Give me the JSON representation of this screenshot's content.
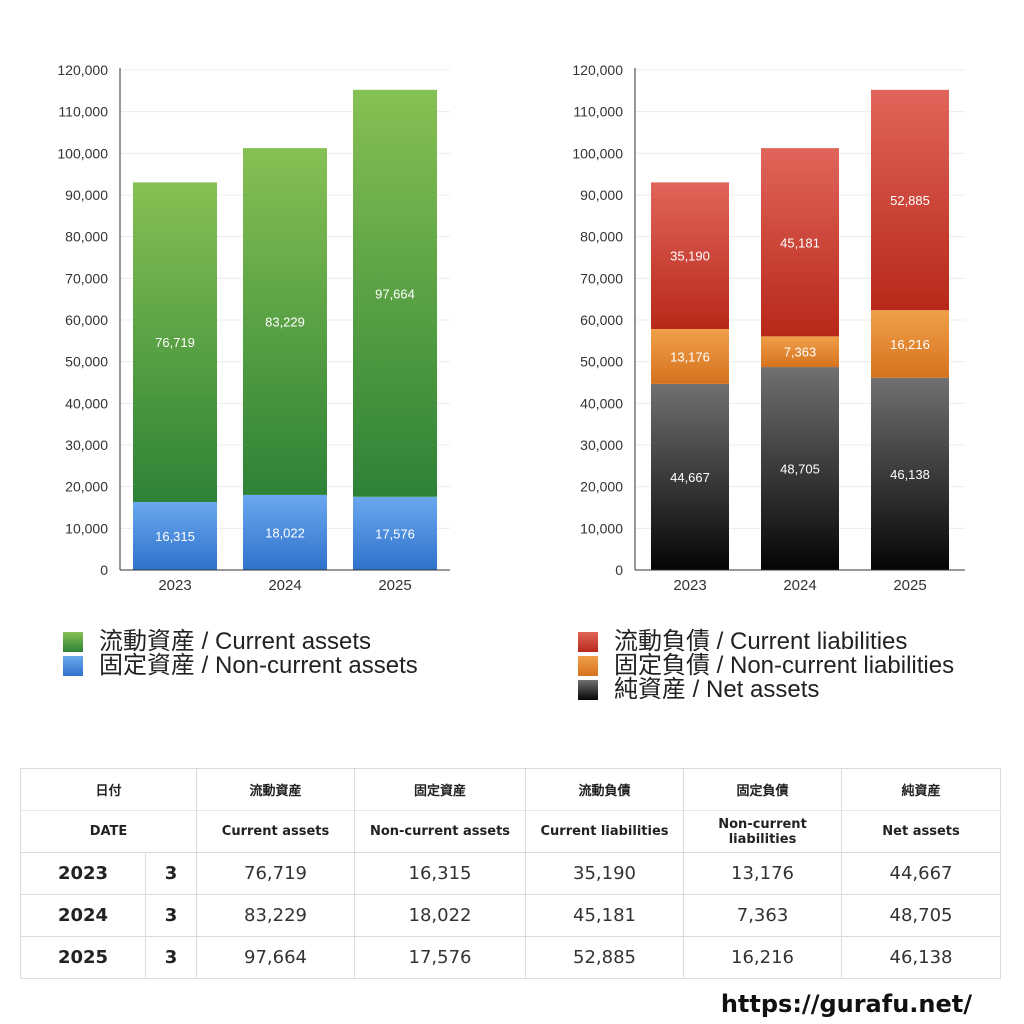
{
  "chart_data": [
    {
      "type": "bar",
      "stacked": true,
      "categories": [
        "2023",
        "2024",
        "2025"
      ],
      "ylim": [
        0,
        120000
      ],
      "yticks": [
        0,
        10000,
        20000,
        30000,
        40000,
        50000,
        60000,
        70000,
        80000,
        90000,
        100000,
        110000,
        120000
      ],
      "ytick_labels": [
        "0",
        "10,000",
        "20,000",
        "30,000",
        "40,000",
        "50,000",
        "60,000",
        "70,000",
        "80,000",
        "90,000",
        "100,000",
        "110,000",
        "120,000"
      ],
      "grid": true,
      "legend_position": "bottom",
      "series": [
        {
          "name": "固定資産 / Non-current assets",
          "values": [
            16315,
            18022,
            17576
          ],
          "labels": [
            "16,315",
            "18,022",
            "17,576"
          ],
          "color_top": "#6aa8ee",
          "color_bottom": "#2f72cc"
        },
        {
          "name": "流動資産 / Current assets",
          "values": [
            76719,
            83229,
            97664
          ],
          "labels": [
            "76,719",
            "83,229",
            "97,664"
          ],
          "color_top": "#86c153",
          "color_bottom": "#2e8236"
        }
      ],
      "legend_order": [
        1,
        0
      ]
    },
    {
      "type": "bar",
      "stacked": true,
      "categories": [
        "2023",
        "2024",
        "2025"
      ],
      "ylim": [
        0,
        120000
      ],
      "yticks": [
        0,
        10000,
        20000,
        30000,
        40000,
        50000,
        60000,
        70000,
        80000,
        90000,
        100000,
        110000,
        120000
      ],
      "ytick_labels": [
        "0",
        "10,000",
        "20,000",
        "30,000",
        "40,000",
        "50,000",
        "60,000",
        "70,000",
        "80,000",
        "90,000",
        "100,000",
        "110,000",
        "120,000"
      ],
      "grid": true,
      "legend_position": "bottom",
      "series": [
        {
          "name": "純資産 / Net assets",
          "values": [
            44667,
            48705,
            46138
          ],
          "labels": [
            "44,667",
            "48,705",
            "46,138"
          ],
          "color_top": "#707070",
          "color_bottom": "#050505"
        },
        {
          "name": "固定負債 / Non-current liabilities",
          "values": [
            13176,
            7363,
            16216
          ],
          "labels": [
            "13,176",
            "7,363",
            "16,216"
          ],
          "color_top": "#f0a04a",
          "color_bottom": "#d6721d"
        },
        {
          "name": "流動負債 / Current liabilities",
          "values": [
            35190,
            45181,
            52885
          ],
          "labels": [
            "35,190",
            "45,181",
            "52,885"
          ],
          "color_top": "#e0655a",
          "color_bottom": "#b8281a"
        }
      ],
      "legend_order": [
        2,
        1,
        0
      ]
    }
  ],
  "table": {
    "header_jp": [
      "日付",
      "流動資産",
      "固定資産",
      "流動負債",
      "固定負債",
      "純資産"
    ],
    "header_en": [
      "DATE",
      "Current assets",
      "Non-current assets",
      "Current liabilities",
      "Non-current liabilities",
      "Net assets"
    ],
    "rows": [
      {
        "year": "2023",
        "month": "3",
        "values": [
          "76,719",
          "16,315",
          "35,190",
          "13,176",
          "44,667"
        ]
      },
      {
        "year": "2024",
        "month": "3",
        "values": [
          "83,229",
          "18,022",
          "45,181",
          "7,363",
          "48,705"
        ]
      },
      {
        "year": "2025",
        "month": "3",
        "values": [
          "97,664",
          "17,576",
          "52,885",
          "16,216",
          "46,138"
        ]
      }
    ]
  },
  "footer": {
    "url": "https://gurafu.net/"
  }
}
